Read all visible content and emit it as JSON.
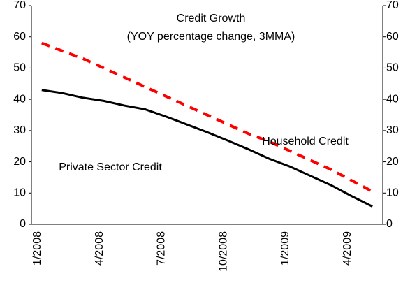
{
  "chart_data": {
    "type": "line",
    "title": "Credit Growth",
    "subtitle": "(YOY percentage change, 3MMA)",
    "categories": [
      "1/2008",
      null,
      null,
      "4/2008",
      null,
      null,
      "7/2008",
      null,
      null,
      "10/2008",
      null,
      null,
      "1/2009",
      null,
      null,
      "4/2009",
      null
    ],
    "series": [
      {
        "name": "Private Sector Credit",
        "color": "#000000",
        "dash": false,
        "values": [
          43,
          42,
          40.5,
          39.5,
          38,
          36.8,
          34.5,
          32,
          29.5,
          26.8,
          24,
          21,
          18.5,
          15.5,
          12.5,
          9,
          5.7
        ]
      },
      {
        "name": "Household Credit",
        "color": "#ff0000",
        "dash": true,
        "values": [
          58,
          55.5,
          53,
          50,
          47,
          44,
          41,
          38,
          35,
          32,
          29,
          26.5,
          23.5,
          20.5,
          17.5,
          14,
          10.5
        ]
      }
    ],
    "ylim": [
      0,
      70
    ],
    "yticks": [
      0,
      10,
      20,
      30,
      40,
      50,
      60,
      70
    ],
    "y2lim": [
      0,
      70
    ],
    "y2ticks": [
      0,
      10,
      20,
      30,
      40,
      50,
      60,
      70
    ],
    "grid": false
  }
}
